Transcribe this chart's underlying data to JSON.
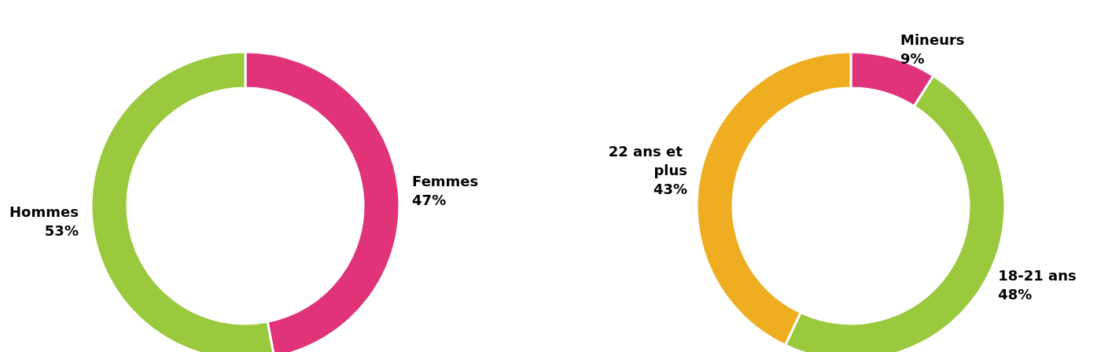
{
  "chart_data": [
    {
      "type": "donut",
      "categories": [
        "Femmes",
        "Hommes"
      ],
      "values": [
        47,
        53
      ],
      "colors": [
        "#e0337a",
        "#9ac93d"
      ],
      "value_labels": [
        "47%",
        "53%"
      ]
    },
    {
      "type": "donut",
      "categories": [
        "Mineurs",
        "18-21 ans",
        "22 ans et plus"
      ],
      "values": [
        9,
        48,
        43
      ],
      "colors": [
        "#e0337a",
        "#9ac93d",
        "#efae22"
      ],
      "value_labels": [
        "9%",
        "48%",
        "43%"
      ]
    }
  ]
}
